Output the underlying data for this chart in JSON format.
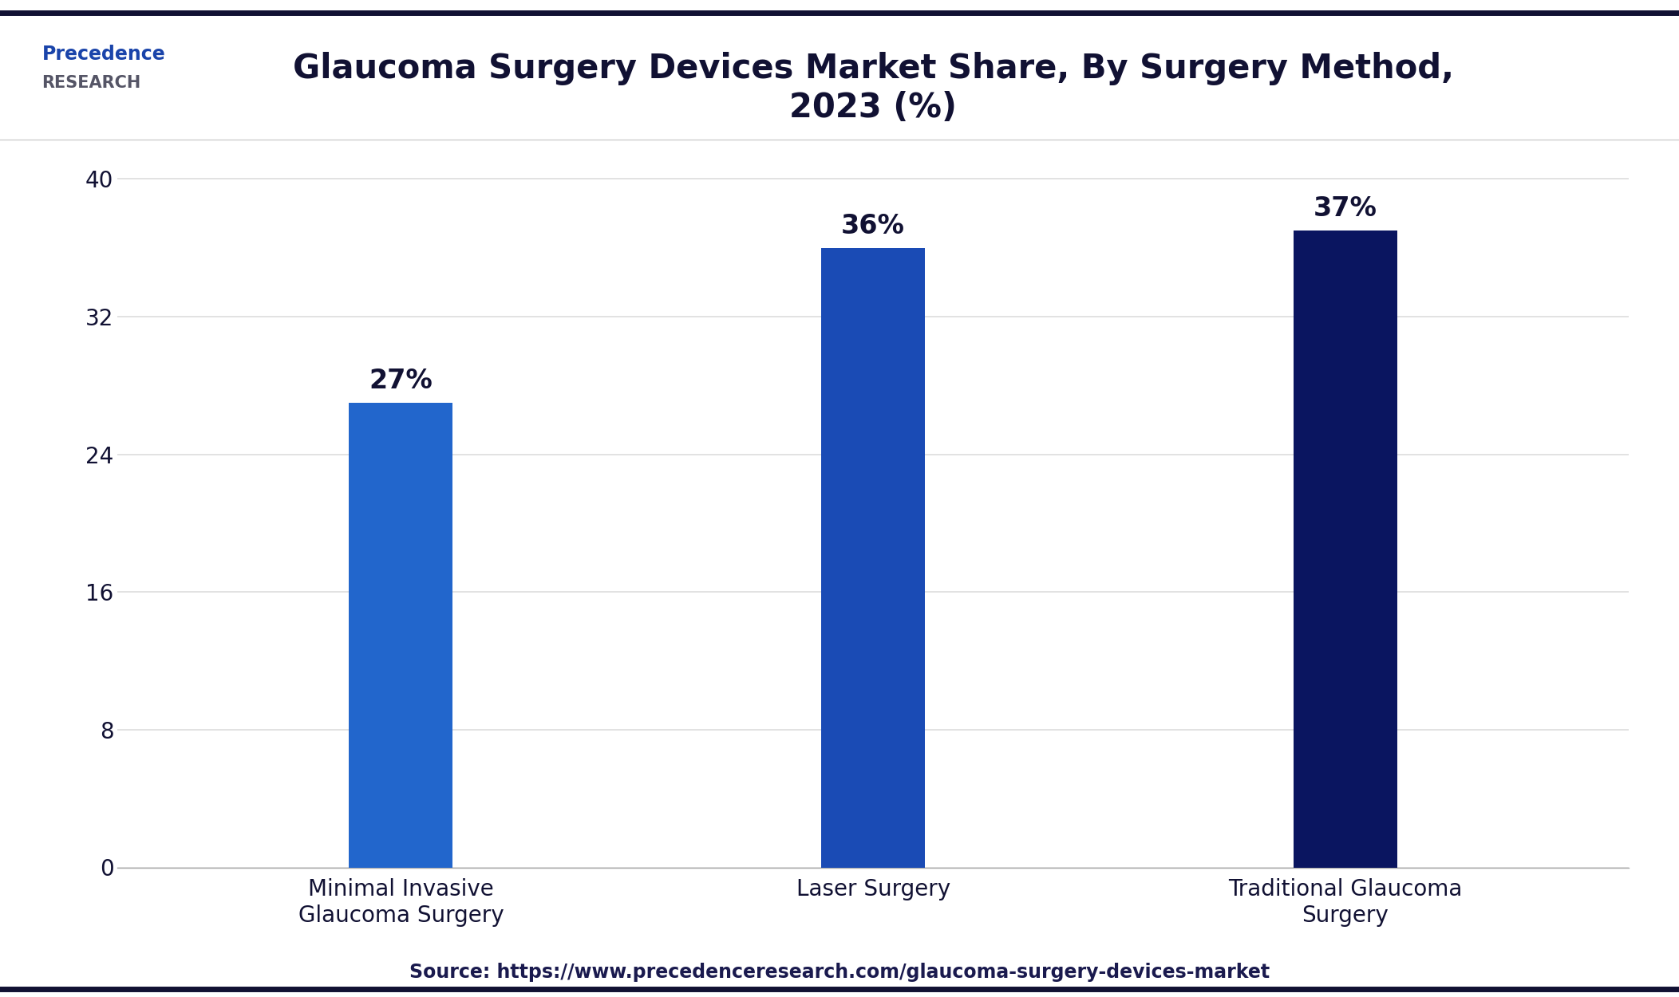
{
  "title": "Glaucoma Surgery Devices Market Share, By Surgery Method,\n2023 (%)",
  "categories": [
    "Minimal Invasive\nGlaucoma Surgery",
    "Laser Surgery",
    "Traditional Glaucoma\nSurgery"
  ],
  "values": [
    27,
    36,
    37
  ],
  "labels": [
    "27%",
    "36%",
    "37%"
  ],
  "bar_colors": [
    "#2266CC",
    "#1A4BB5",
    "#0A1560"
  ],
  "ylim": [
    0,
    42
  ],
  "yticks": [
    0,
    8,
    16,
    24,
    32,
    40
  ],
  "title_fontsize": 30,
  "tick_fontsize": 20,
  "label_fontsize": 24,
  "source_text": "Source: https://www.precedenceresearch.com/glaucoma-surgery-devices-market",
  "bg_color": "#FFFFFF",
  "plot_bg_color": "#FFFFFF",
  "grid_color": "#DDDDDD",
  "title_color": "#111133",
  "tick_color": "#111133",
  "bar_label_color": "#111133",
  "source_color": "#1a1a4e",
  "top_border_color": "#111133",
  "bottom_border_color": "#111133",
  "bar_width": 0.22
}
